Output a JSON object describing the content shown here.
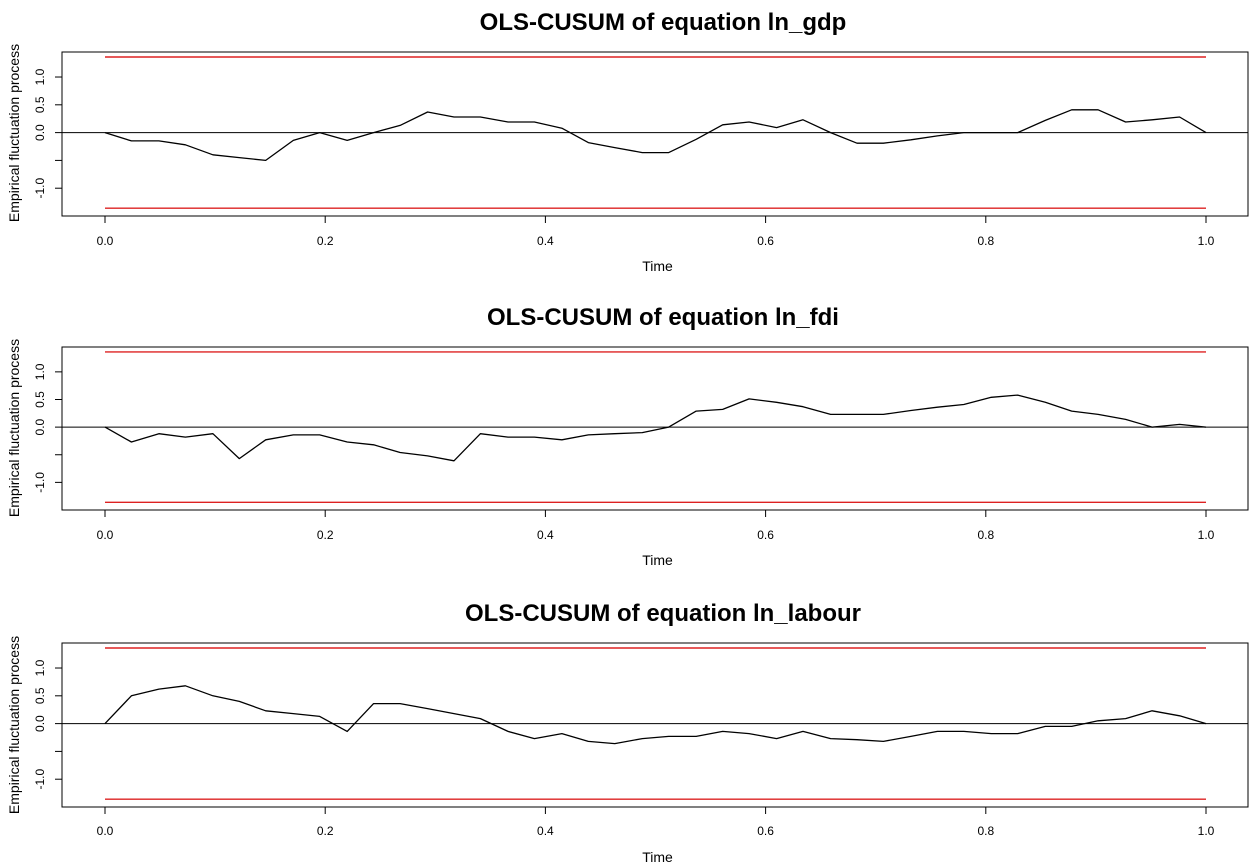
{
  "chart_data": [
    {
      "type": "line",
      "title": "OLS-CUSUM of equation ln_gdp",
      "xlabel": "Time",
      "ylabel": "Empirical fluctuation process",
      "xlim": [
        0,
        1
      ],
      "ylim": [
        -1.5,
        1.45
      ],
      "x_ticks": [
        "0.0",
        "0.2",
        "0.4",
        "0.6",
        "0.8",
        "1.0"
      ],
      "y_ticks": [
        "-1.0",
        "0.0",
        "0.5",
        "1.0"
      ],
      "boundary": [
        -1.36,
        1.36
      ],
      "series": [
        {
          "color": "#000000",
          "x": [
            0.0,
            0.024,
            0.049,
            0.073,
            0.098,
            0.122,
            0.146,
            0.171,
            0.195,
            0.22,
            0.244,
            0.268,
            0.293,
            0.317,
            0.341,
            0.366,
            0.39,
            0.415,
            0.439,
            0.463,
            0.488,
            0.512,
            0.537,
            0.561,
            0.585,
            0.61,
            0.634,
            0.659,
            0.683,
            0.707,
            0.732,
            0.756,
            0.78,
            0.805,
            0.829,
            0.854,
            0.878,
            0.902,
            0.927,
            0.951,
            0.976,
            1.0
          ],
          "y": [
            0.0,
            -0.15,
            -0.15,
            -0.22,
            -0.4,
            -0.45,
            -0.5,
            -0.14,
            0.0,
            -0.14,
            0.0,
            0.13,
            0.37,
            0.28,
            0.28,
            0.19,
            0.19,
            0.08,
            -0.18,
            -0.27,
            -0.36,
            -0.36,
            -0.12,
            0.14,
            0.19,
            0.09,
            0.23,
            0.0,
            -0.19,
            -0.19,
            -0.13,
            -0.06,
            0.0,
            0.0,
            0.0,
            0.22,
            0.41,
            0.41,
            0.19,
            0.23,
            0.28,
            0.0
          ]
        }
      ]
    },
    {
      "type": "line",
      "title": "OLS-CUSUM of equation ln_fdi",
      "xlabel": "Time",
      "ylabel": "Empirical fluctuation process",
      "xlim": [
        0,
        1
      ],
      "ylim": [
        -1.5,
        1.45
      ],
      "x_ticks": [
        "0.0",
        "0.2",
        "0.4",
        "0.6",
        "0.8",
        "1.0"
      ],
      "y_ticks": [
        "-1.0",
        "0.0",
        "0.5",
        "1.0"
      ],
      "boundary": [
        -1.36,
        1.36
      ],
      "series": [
        {
          "color": "#000000",
          "x": [
            0.0,
            0.024,
            0.049,
            0.073,
            0.098,
            0.122,
            0.146,
            0.171,
            0.195,
            0.22,
            0.244,
            0.268,
            0.293,
            0.317,
            0.341,
            0.366,
            0.39,
            0.415,
            0.439,
            0.463,
            0.488,
            0.512,
            0.537,
            0.561,
            0.585,
            0.61,
            0.634,
            0.659,
            0.683,
            0.707,
            0.732,
            0.756,
            0.78,
            0.805,
            0.829,
            0.854,
            0.878,
            0.902,
            0.927,
            0.951,
            0.976,
            1.0
          ],
          "y": [
            0.0,
            -0.27,
            -0.12,
            -0.18,
            -0.12,
            -0.57,
            -0.23,
            -0.14,
            -0.14,
            -0.27,
            -0.32,
            -0.46,
            -0.52,
            -0.61,
            -0.12,
            -0.18,
            -0.18,
            -0.23,
            -0.14,
            -0.12,
            -0.1,
            0.0,
            0.29,
            0.32,
            0.51,
            0.45,
            0.37,
            0.23,
            0.23,
            0.23,
            0.3,
            0.36,
            0.41,
            0.54,
            0.58,
            0.45,
            0.29,
            0.23,
            0.14,
            0.0,
            0.05,
            0.0
          ]
        }
      ]
    },
    {
      "type": "line",
      "title": "OLS-CUSUM of equation ln_labour",
      "xlabel": "Time",
      "ylabel": "Empirical fluctuation process",
      "xlim": [
        0,
        1
      ],
      "ylim": [
        -1.5,
        1.45
      ],
      "x_ticks": [
        "0.0",
        "0.2",
        "0.4",
        "0.6",
        "0.8",
        "1.0"
      ],
      "y_ticks": [
        "-1.0",
        "0.0",
        "0.5",
        "1.0"
      ],
      "boundary": [
        -1.36,
        1.36
      ],
      "series": [
        {
          "color": "#000000",
          "x": [
            0.0,
            0.024,
            0.049,
            0.073,
            0.098,
            0.122,
            0.146,
            0.171,
            0.195,
            0.22,
            0.244,
            0.268,
            0.293,
            0.317,
            0.341,
            0.366,
            0.39,
            0.415,
            0.439,
            0.463,
            0.488,
            0.512,
            0.537,
            0.561,
            0.585,
            0.61,
            0.634,
            0.659,
            0.683,
            0.707,
            0.732,
            0.756,
            0.78,
            0.805,
            0.829,
            0.854,
            0.878,
            0.902,
            0.927,
            0.951,
            0.976,
            1.0
          ],
          "y": [
            0.0,
            0.5,
            0.62,
            0.68,
            0.5,
            0.4,
            0.23,
            0.18,
            0.13,
            -0.14,
            0.36,
            0.36,
            0.27,
            0.18,
            0.09,
            -0.14,
            -0.27,
            -0.18,
            -0.32,
            -0.36,
            -0.27,
            -0.23,
            -0.23,
            -0.14,
            -0.18,
            -0.27,
            -0.14,
            -0.27,
            -0.29,
            -0.32,
            -0.23,
            -0.14,
            -0.14,
            -0.18,
            -0.18,
            -0.05,
            -0.05,
            0.05,
            0.09,
            0.23,
            0.14,
            0.0
          ]
        }
      ]
    }
  ],
  "style": {
    "line_color": "#000000",
    "boundary_color": "#dd2222",
    "axis_color": "#000000"
  }
}
